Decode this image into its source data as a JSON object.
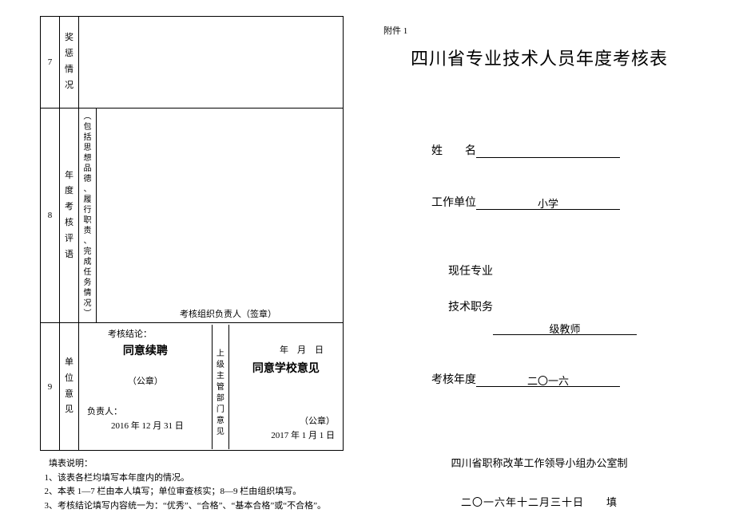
{
  "left": {
    "row7": {
      "num": "7",
      "label": "奖\n惩\n情\n况"
    },
    "row8": {
      "num": "8",
      "label": "年\n度\n考\n核\n评\n语",
      "sublabel": "︵\n包\n括\n思\n想\n品\n德\n、\n履\n行\n职\n责\n、\n完\n成\n任\n务\n情\n况\n︶",
      "leader": "考核组织负责人（签章）",
      "concl": "考核结论：",
      "date": "年　月　日"
    },
    "row9": {
      "num": "9",
      "label": "单\n位\n意\n见",
      "title_l": "同意续聘",
      "seal_l": "（公章）",
      "person_l": "负责人：",
      "date_l": "2016 年 12 月 31 日",
      "midlabel": "上\n级\n主\n管\n部\n门\n意\n见",
      "title_r": "同意学校意见",
      "seal_r": "（公章）",
      "date_r": "2017 年 1 月 1 日"
    },
    "notes": {
      "title": "填表说明：",
      "n1": "1、该表各栏均填写本年度内的情况。",
      "n2": "2、本表 1—7 栏由本人填写；单位审查核实；8—9 栏由组织填写。",
      "n3": "3、考核结论填写内容统一为：“优秀”、“合格”、“基本合格”或“不合格”。"
    }
  },
  "right": {
    "attach": "附件 1",
    "title": "四川省专业技术人员年度考核表",
    "name_label": "姓　　名",
    "name_value": "",
    "unit_label": "工作单位",
    "unit_value": "小学",
    "post_label1": "现任专业",
    "post_label2": "技术职务",
    "post_value": "级教师",
    "year_label": "考核年度",
    "year_value": "二〇一六",
    "footer_org": "四川省职称改革工作领导小组办公室制",
    "footer_date": "二〇一六年十二月三十日　　填"
  }
}
